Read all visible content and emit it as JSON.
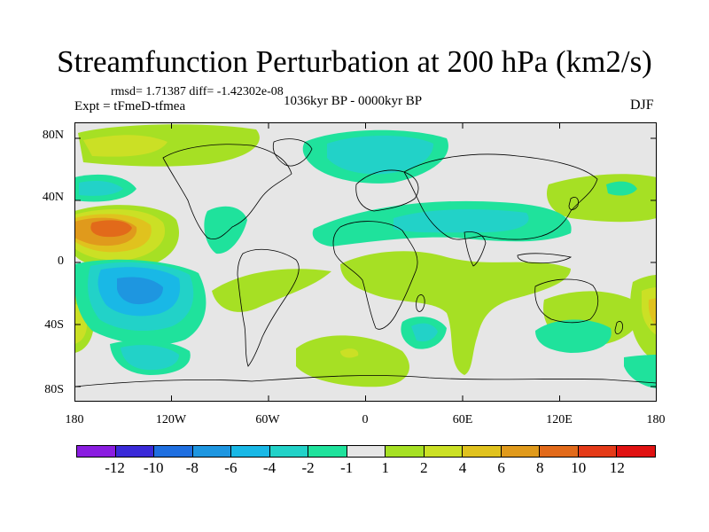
{
  "title": "Streamfunction Perturbation at 200 hPa (km2/s)",
  "stats": "rmsd= 1.71387 diff= -1.42302e-08",
  "experiment": "Expt = tFmeD-tfmea",
  "period": "1036kyr BP - 0000kyr BP",
  "season": "DJF",
  "lat_ticks": [
    "80N",
    "40N",
    "0",
    "40S",
    "80S"
  ],
  "lon_ticks": [
    "180",
    "120W",
    "60W",
    "0",
    "60E",
    "120E",
    "180"
  ],
  "colorbar": {
    "labels": [
      "-12",
      "-10",
      "-8",
      "-6",
      "-4",
      "-2",
      "-1",
      "1",
      "2",
      "4",
      "6",
      "8",
      "10",
      "12"
    ],
    "colors": [
      "#8a1de0",
      "#3a2ad8",
      "#1f6fe0",
      "#1e96e0",
      "#19b8e6",
      "#22d2c8",
      "#1fe29c",
      "#e6e6e6",
      "#a6e024",
      "#cbe025",
      "#e0c21e",
      "#e09a1c",
      "#e26a1a",
      "#e43a18",
      "#e01212"
    ]
  }
}
